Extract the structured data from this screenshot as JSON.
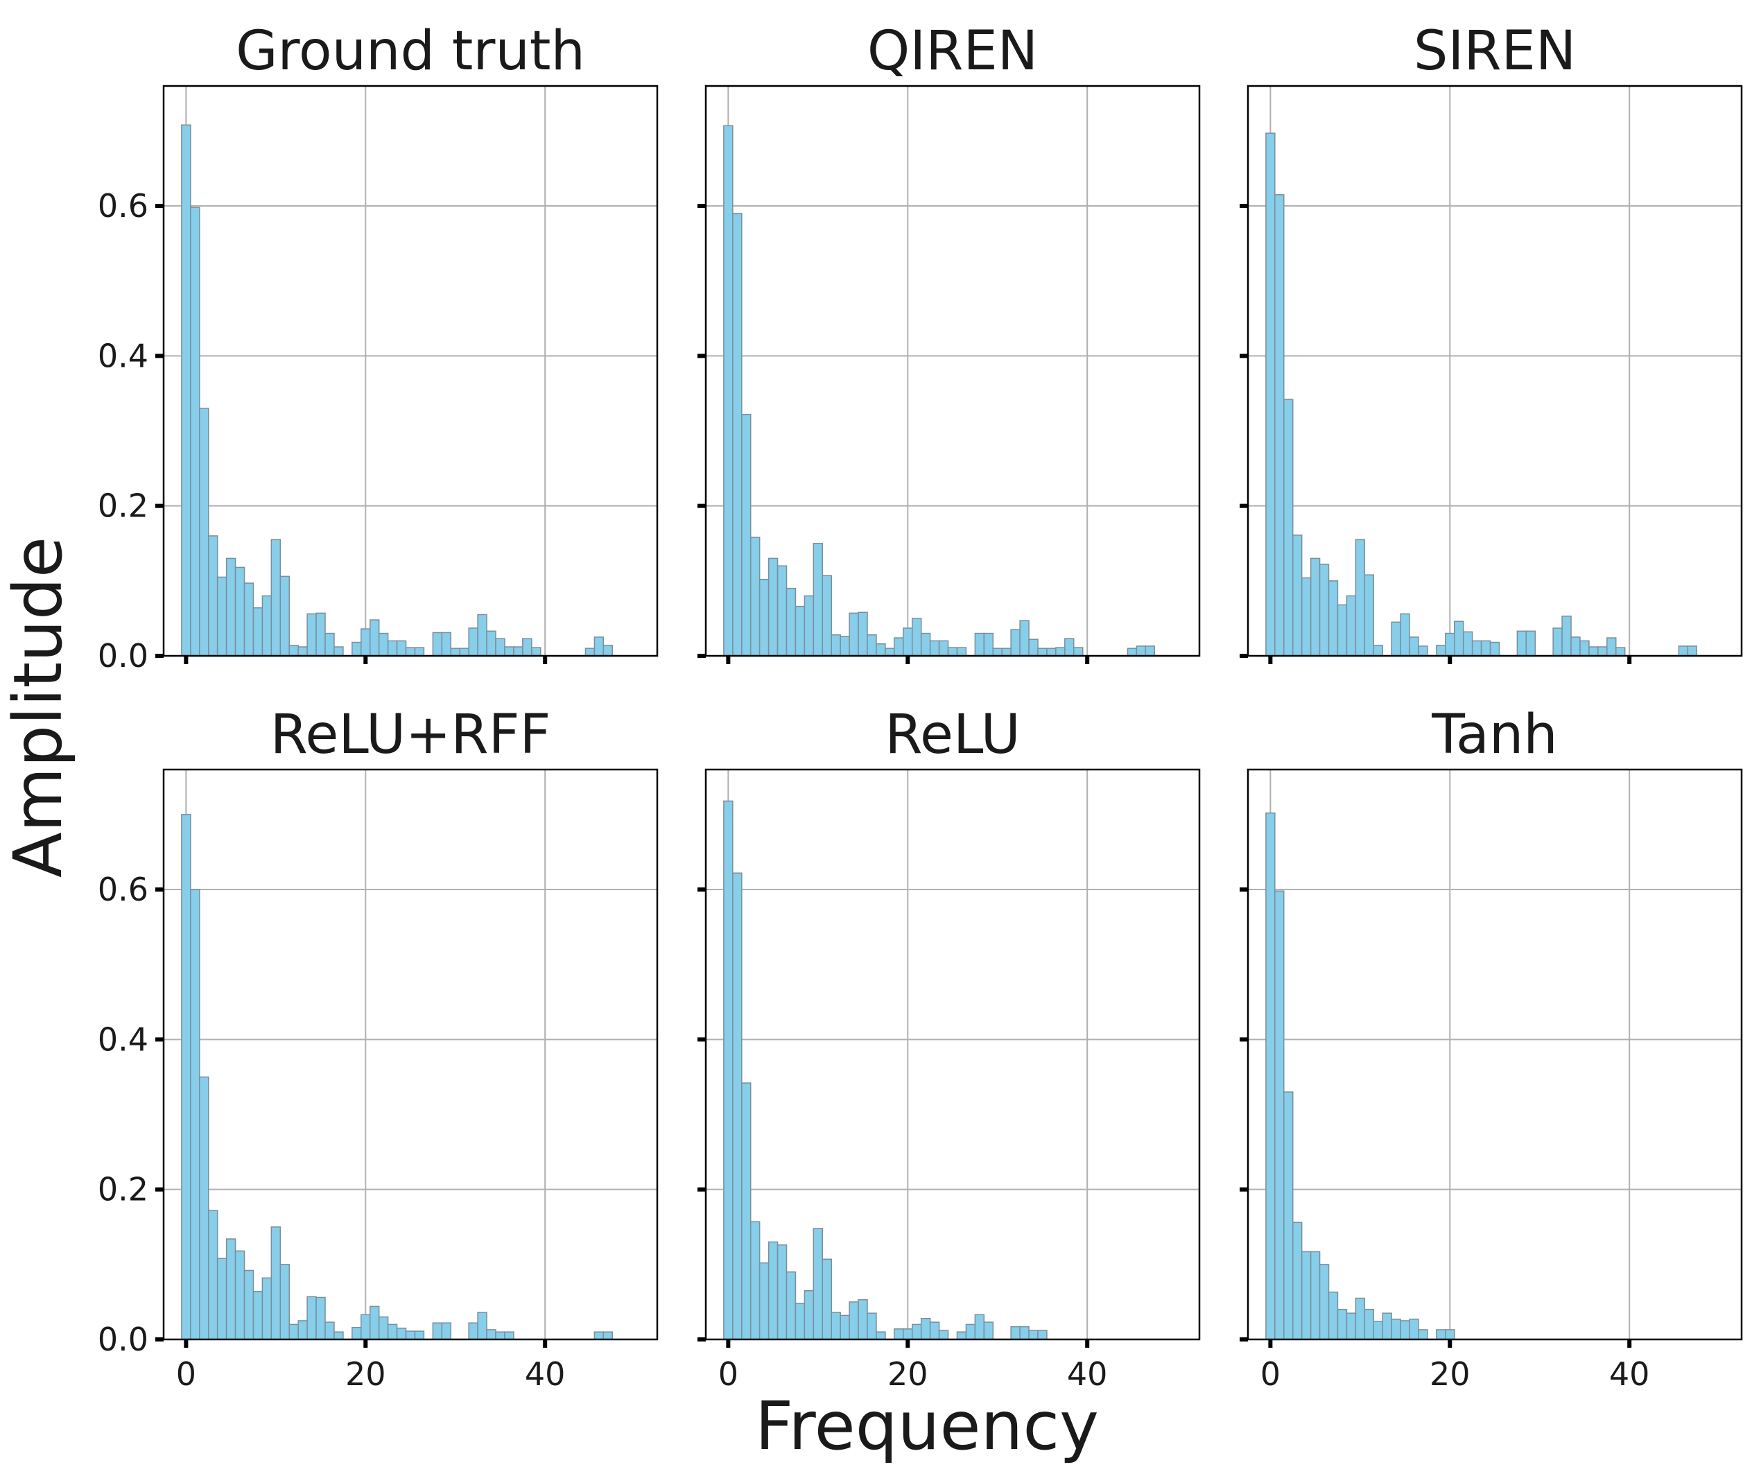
{
  "chart_data": {
    "type": "bar",
    "xlabel": "Frequency",
    "ylabel": "Amplitude",
    "xlim": [
      -2.5,
      52.5
    ],
    "ylim": [
      0,
      0.76
    ],
    "xticks": [
      "0",
      "20",
      "40"
    ],
    "yticks": [
      "0.0",
      "0.2",
      "0.4",
      "0.6"
    ],
    "grid": true,
    "bar_color": "#87CEEB",
    "bar_edge_color": "#7a8f99",
    "bin_width": 1,
    "panels": [
      {
        "title": "Ground truth",
        "values": [
          0.708,
          0.598,
          0.33,
          0.16,
          0.105,
          0.13,
          0.118,
          0.097,
          0.064,
          0.08,
          0.155,
          0.106,
          0.014,
          0.012,
          0.056,
          0.057,
          0.03,
          0.012,
          0,
          0.018,
          0.036,
          0.048,
          0.03,
          0.02,
          0.02,
          0.011,
          0.011,
          0,
          0.031,
          0.031,
          0.01,
          0.01,
          0.037,
          0.055,
          0.033,
          0.023,
          0.012,
          0.012,
          0.023,
          0.011,
          0,
          0,
          0,
          0,
          0,
          0.01,
          0.025,
          0.014,
          0
        ]
      },
      {
        "title": "QIREN",
        "values": [
          0.707,
          0.59,
          0.322,
          0.158,
          0.102,
          0.13,
          0.12,
          0.09,
          0.066,
          0.08,
          0.15,
          0.107,
          0.028,
          0.026,
          0.057,
          0.058,
          0.028,
          0.016,
          0.01,
          0.024,
          0.037,
          0.05,
          0.03,
          0.02,
          0.02,
          0.011,
          0.011,
          0,
          0.03,
          0.03,
          0.01,
          0.01,
          0.035,
          0.047,
          0.022,
          0.01,
          0.01,
          0.011,
          0.023,
          0.011,
          0,
          0,
          0,
          0,
          0,
          0.01,
          0.013,
          0.013,
          0
        ]
      },
      {
        "title": "SIREN",
        "values": [
          0.697,
          0.615,
          0.342,
          0.161,
          0.104,
          0.13,
          0.122,
          0.1,
          0.068,
          0.08,
          0.155,
          0.108,
          0.014,
          0,
          0.045,
          0.056,
          0.025,
          0.013,
          0,
          0.014,
          0.03,
          0.046,
          0.032,
          0.02,
          0.02,
          0.018,
          0,
          0,
          0.033,
          0.033,
          0,
          0,
          0.037,
          0.053,
          0.025,
          0.02,
          0.012,
          0.012,
          0.024,
          0.011,
          0,
          0,
          0,
          0,
          0,
          0,
          0.013,
          0.013,
          0
        ]
      },
      {
        "title": "ReLU+RFF",
        "values": [
          0.7,
          0.6,
          0.35,
          0.172,
          0.108,
          0.134,
          0.118,
          0.092,
          0.064,
          0.082,
          0.15,
          0.1,
          0.02,
          0.025,
          0.057,
          0.056,
          0.023,
          0.01,
          0,
          0.016,
          0.033,
          0.044,
          0.03,
          0.02,
          0.015,
          0.011,
          0.011,
          0,
          0.022,
          0.022,
          0,
          0,
          0.022,
          0.036,
          0.013,
          0.01,
          0.01,
          0,
          0,
          0,
          0,
          0,
          0,
          0,
          0,
          0,
          0.01,
          0.01,
          0
        ]
      },
      {
        "title": "ReLU",
        "values": [
          0.718,
          0.622,
          0.342,
          0.157,
          0.102,
          0.13,
          0.126,
          0.09,
          0.048,
          0.065,
          0.148,
          0.107,
          0.036,
          0.032,
          0.05,
          0.053,
          0.035,
          0.01,
          0,
          0.014,
          0.014,
          0.02,
          0.028,
          0.023,
          0.012,
          0,
          0.01,
          0.02,
          0.033,
          0.023,
          0,
          0,
          0.017,
          0.017,
          0.012,
          0.012,
          0,
          0,
          0,
          0,
          0,
          0,
          0,
          0,
          0,
          0,
          0,
          0,
          0
        ]
      },
      {
        "title": "Tanh",
        "values": [
          0.702,
          0.598,
          0.33,
          0.156,
          0.117,
          0.117,
          0.1,
          0.063,
          0.04,
          0.035,
          0.055,
          0.04,
          0.024,
          0.035,
          0.027,
          0.025,
          0.027,
          0.013,
          0,
          0.013,
          0.013,
          0,
          0,
          0,
          0,
          0,
          0,
          0,
          0,
          0,
          0,
          0,
          0,
          0,
          0,
          0,
          0,
          0,
          0,
          0,
          0,
          0,
          0,
          0,
          0,
          0,
          0,
          0,
          0
        ]
      }
    ]
  }
}
